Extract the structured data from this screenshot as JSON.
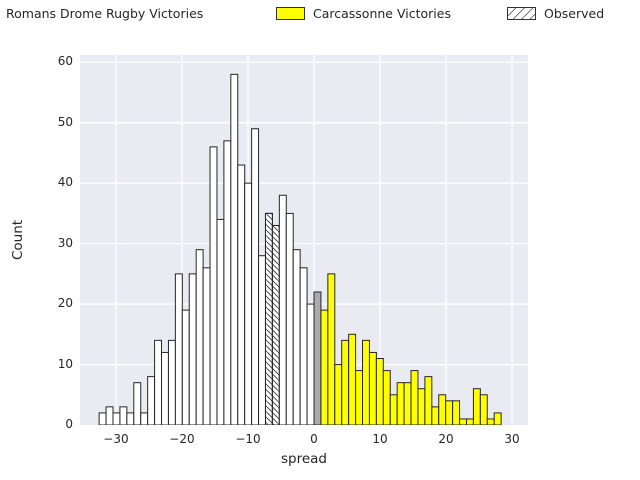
{
  "legend": {
    "title": "Romans Drome Rugby Victories",
    "items": [
      {
        "label": "Carcassonne Victories",
        "swatch": "yellow-filled-rect"
      },
      {
        "label": "Observed",
        "swatch": "white-hatched-rect"
      }
    ]
  },
  "axes": {
    "xlabel": "spread",
    "ylabel": "Count",
    "x_tick_labels": [
      "−30",
      "−20",
      "−10",
      "0",
      "10",
      "20",
      "30"
    ],
    "x_tick_values": [
      -30,
      -20,
      -10,
      0,
      10,
      20,
      30
    ],
    "y_tick_labels": [
      "0",
      "10",
      "20",
      "30",
      "40",
      "50",
      "60"
    ],
    "y_tick_values": [
      0,
      10,
      20,
      30,
      40,
      50,
      60
    ]
  },
  "colors": {
    "plot_background": "#eaeaf2",
    "figure_background": "#ffffff",
    "gridline": "#ffffff",
    "bar_edge": "#262626",
    "null_bar_fill": "#ffffff",
    "zero_bar_fill": "#ababab",
    "highlight_bar_fill": "#ffff00",
    "hatch_line": "#333333",
    "text": "#262626"
  },
  "chart_data": {
    "type": "bar",
    "subtype": "histogram",
    "title": "",
    "xlabel": "spread",
    "ylabel": "Count",
    "xlim": [
      -35.45,
      32.42
    ],
    "ylim": [
      0,
      61.2
    ],
    "grid": true,
    "legend_position": "top",
    "bin_start": -32.55,
    "bin_width": 1.05,
    "series": [
      {
        "name": "Romans Drome Rugby Victories (null distribution, white)",
        "bin_range": [
          -32.55,
          0.0
        ],
        "values": [
          2,
          3,
          2,
          3,
          2,
          7,
          2,
          8,
          14,
          12,
          14,
          25,
          19,
          25,
          29,
          26,
          46,
          34,
          47,
          58,
          43,
          40,
          49,
          28,
          35,
          33,
          38,
          35,
          29,
          26,
          20
        ]
      },
      {
        "name": "zero bin (gray)",
        "bin_range": [
          0.0,
          1.05
        ],
        "values": [
          22
        ]
      },
      {
        "name": "Carcassonne Victories (yellow)",
        "bin_range": [
          1.05,
          28.35
        ],
        "values": [
          19,
          25,
          10,
          14,
          15,
          9,
          14,
          12,
          11,
          9,
          5,
          7,
          7,
          9,
          6,
          8,
          3,
          5,
          4,
          4,
          1,
          1,
          6,
          5,
          1,
          2
        ]
      }
    ],
    "bars": [
      {
        "count": 2,
        "color": "white"
      },
      {
        "count": 3,
        "color": "white"
      },
      {
        "count": 2,
        "color": "white"
      },
      {
        "count": 3,
        "color": "white"
      },
      {
        "count": 2,
        "color": "white"
      },
      {
        "count": 7,
        "color": "white"
      },
      {
        "count": 2,
        "color": "white"
      },
      {
        "count": 8,
        "color": "white"
      },
      {
        "count": 14,
        "color": "white"
      },
      {
        "count": 12,
        "color": "white"
      },
      {
        "count": 14,
        "color": "white"
      },
      {
        "count": 25,
        "color": "white"
      },
      {
        "count": 19,
        "color": "white"
      },
      {
        "count": 25,
        "color": "white"
      },
      {
        "count": 29,
        "color": "white"
      },
      {
        "count": 26,
        "color": "white"
      },
      {
        "count": 46,
        "color": "white"
      },
      {
        "count": 34,
        "color": "white"
      },
      {
        "count": 47,
        "color": "white"
      },
      {
        "count": 58,
        "color": "white"
      },
      {
        "count": 43,
        "color": "white"
      },
      {
        "count": 40,
        "color": "white"
      },
      {
        "count": 49,
        "color": "white"
      },
      {
        "count": 28,
        "color": "white"
      },
      {
        "count": 35,
        "color": "white",
        "hatch": true
      },
      {
        "count": 33,
        "color": "white",
        "hatch": true
      },
      {
        "count": 38,
        "color": "white"
      },
      {
        "count": 35,
        "color": "white"
      },
      {
        "count": 29,
        "color": "white"
      },
      {
        "count": 26,
        "color": "white"
      },
      {
        "count": 20,
        "color": "white"
      },
      {
        "count": 22,
        "color": "gray"
      },
      {
        "count": 19,
        "color": "yellow"
      },
      {
        "count": 25,
        "color": "yellow"
      },
      {
        "count": 10,
        "color": "yellow"
      },
      {
        "count": 14,
        "color": "yellow"
      },
      {
        "count": 15,
        "color": "yellow"
      },
      {
        "count": 9,
        "color": "yellow"
      },
      {
        "count": 14,
        "color": "yellow"
      },
      {
        "count": 12,
        "color": "yellow"
      },
      {
        "count": 11,
        "color": "yellow"
      },
      {
        "count": 9,
        "color": "yellow"
      },
      {
        "count": 5,
        "color": "yellow"
      },
      {
        "count": 7,
        "color": "yellow"
      },
      {
        "count": 7,
        "color": "yellow"
      },
      {
        "count": 9,
        "color": "yellow"
      },
      {
        "count": 6,
        "color": "yellow"
      },
      {
        "count": 8,
        "color": "yellow"
      },
      {
        "count": 3,
        "color": "yellow"
      },
      {
        "count": 5,
        "color": "yellow"
      },
      {
        "count": 4,
        "color": "yellow"
      },
      {
        "count": 4,
        "color": "yellow"
      },
      {
        "count": 1,
        "color": "yellow"
      },
      {
        "count": 1,
        "color": "yellow"
      },
      {
        "count": 6,
        "color": "yellow"
      },
      {
        "count": 5,
        "color": "yellow"
      },
      {
        "count": 1,
        "color": "yellow"
      },
      {
        "count": 2,
        "color": "yellow"
      }
    ]
  }
}
